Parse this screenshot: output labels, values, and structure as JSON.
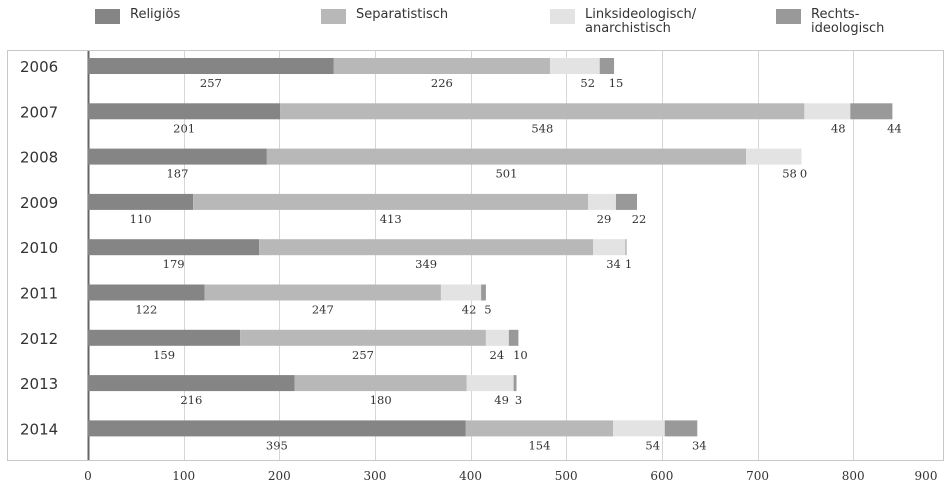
{
  "chart_data": {
    "type": "bar",
    "orientation": "horizontal",
    "stacked": true,
    "categories": [
      "2006",
      "2007",
      "2008",
      "2009",
      "2010",
      "2011",
      "2012",
      "2013",
      "2014"
    ],
    "series": [
      {
        "name": "Religiös",
        "color": "#858585",
        "values": [
          257,
          201,
          187,
          110,
          179,
          122,
          159,
          216,
          395
        ]
      },
      {
        "name": "Separatistisch",
        "color": "#b8b8b8",
        "values": [
          226,
          548,
          501,
          413,
          349,
          247,
          257,
          180,
          154
        ]
      },
      {
        "name": "Linksideologisch/\nanarchistisch",
        "color": "#e3e3e3",
        "values": [
          52,
          48,
          58,
          29,
          34,
          42,
          24,
          49,
          54
        ]
      },
      {
        "name": "Rechts-\nideologisch",
        "color": "#999999",
        "values": [
          15,
          44,
          0,
          22,
          1,
          5,
          10,
          3,
          34
        ]
      }
    ],
    "xlim": [
      0,
      900
    ],
    "xticks": [
      "0",
      "100",
      "200",
      "300",
      "400",
      "500",
      "600",
      "700",
      "800",
      "900"
    ],
    "grid": true,
    "legend_position": "top"
  }
}
